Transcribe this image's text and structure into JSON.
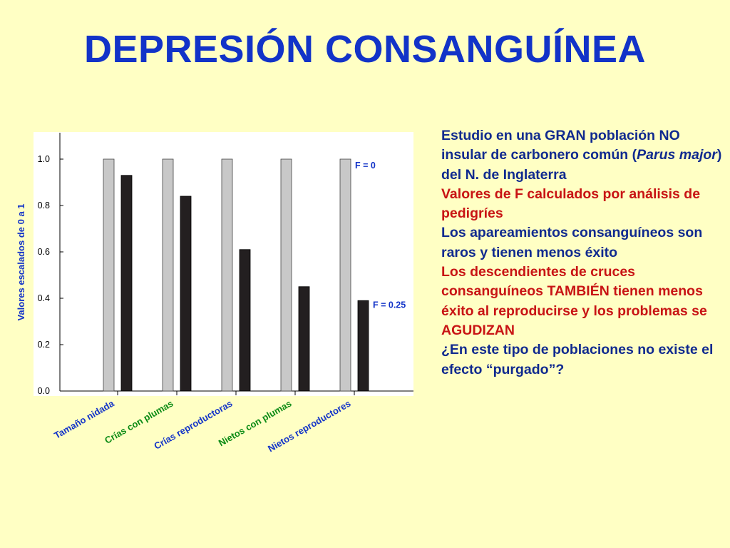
{
  "slide": {
    "title": "DEPRESIÓN CONSANGUÍNEA"
  },
  "chart_data": {
    "type": "bar",
    "categories": [
      "Tamaño nidada",
      "Crías con plumas",
      "Crías reproductoras",
      "Nietos con plumas",
      "Nietos reproductores"
    ],
    "category_colors": [
      "#1233c8",
      "#0a8a14",
      "#1233c8",
      "#0a8a14",
      "#1233c8"
    ],
    "series": [
      {
        "name": "F = 0",
        "values": [
          1.0,
          1.0,
          1.0,
          1.0,
          1.0
        ],
        "color": "#c8c8c8"
      },
      {
        "name": "F = 0.25",
        "values": [
          0.93,
          0.84,
          0.61,
          0.45,
          0.39
        ],
        "color": "#231f20"
      }
    ],
    "ylabel": "Valores escalados de 0 a 1",
    "ylim": [
      0,
      1.0
    ],
    "yticks": [
      "0.0",
      "0.2",
      "0.4",
      "0.6",
      "0.8",
      "1.0"
    ],
    "ytick_values": [
      0,
      0.2,
      0.4,
      0.6,
      0.8,
      1.0
    ],
    "legend_placement": "inline-right",
    "grid": false,
    "plot_background": "#ffffff"
  },
  "side_text": [
    {
      "text": "Estudio en una GRAN población NO insular de carbonero común (",
      "color": "blue",
      "italic_part": "Parus major",
      "tail": ") del N. de Inglaterra"
    },
    {
      "text": "Valores de F calculados por análisis de pedigríes",
      "color": "red"
    },
    {
      "text": "Los apareamientos consanguíneos son raros y tienen menos éxito",
      "color": "blue"
    },
    {
      "text": "Los descendientes de cruces consanguíneos TAMBIÉN tienen menos éxito al reproducirse y los problemas se AGUDIZAN",
      "color": "red"
    },
    {
      "text": "¿En este tipo de poblaciones no existe el efecto “purgado”?",
      "color": "blue"
    }
  ]
}
